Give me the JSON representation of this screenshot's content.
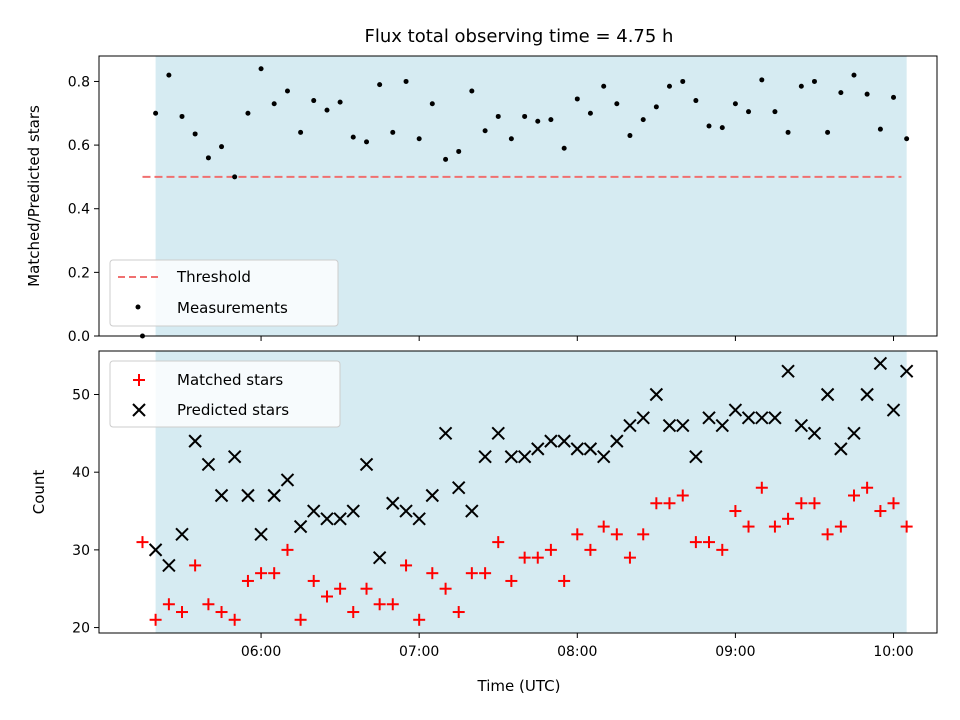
{
  "chart_data": [
    {
      "type": "scatter",
      "title": "Flux total observing time = 4.75 h",
      "xlabel": "",
      "ylabel": "Matched/Predicted stars",
      "xlim_hours": [
        4.975,
        10.275
      ],
      "ylim": [
        0,
        0.88
      ],
      "yticks": [
        0.0,
        0.2,
        0.4,
        0.6,
        0.8
      ],
      "ytick_labels": [
        "0.0",
        "0.2",
        "0.4",
        "0.6",
        "0.8"
      ],
      "xticks_hours": [
        6,
        7,
        8,
        9,
        10
      ],
      "grid": false,
      "legend_position": "lower-left",
      "observing_window_hours": [
        5.333,
        10.083
      ],
      "observing_window_color": "#add8e6",
      "threshold": {
        "name": "Threshold",
        "value": 0.5,
        "x_range_hours": [
          5.25,
          10.05
        ],
        "color": "#f07070"
      },
      "series": [
        {
          "name": "Measurements",
          "marker": "dot",
          "color": "#000000",
          "x_hours": [
            5.25,
            5.333,
            5.417,
            5.5,
            5.583,
            5.667,
            5.75,
            5.833,
            5.917,
            6.0,
            6.083,
            6.167,
            6.25,
            6.333,
            6.417,
            6.5,
            6.583,
            6.667,
            6.75,
            6.833,
            6.917,
            7.0,
            7.083,
            7.167,
            7.25,
            7.333,
            7.417,
            7.5,
            7.583,
            7.667,
            7.75,
            7.833,
            7.917,
            8.0,
            8.083,
            8.167,
            8.25,
            8.333,
            8.417,
            8.5,
            8.583,
            8.667,
            8.75,
            8.833,
            8.917,
            9.0,
            9.083,
            9.167,
            9.25,
            9.333,
            9.417,
            9.5,
            9.583,
            9.667,
            9.75,
            9.833,
            9.917,
            10.0,
            10.083
          ],
          "y": [
            0.0,
            0.7,
            0.82,
            0.69,
            0.635,
            0.56,
            0.595,
            0.5,
            0.7,
            0.84,
            0.73,
            0.77,
            0.64,
            0.74,
            0.71,
            0.735,
            0.625,
            0.61,
            0.79,
            0.64,
            0.8,
            0.62,
            0.73,
            0.555,
            0.58,
            0.77,
            0.645,
            0.69,
            0.62,
            0.69,
            0.675,
            0.68,
            0.59,
            0.745,
            0.7,
            0.785,
            0.73,
            0.63,
            0.68,
            0.72,
            0.785,
            0.8,
            0.74,
            0.66,
            0.655,
            0.73,
            0.705,
            0.805,
            0.705,
            0.64,
            0.785,
            0.8,
            0.64,
            0.765,
            0.82,
            0.76,
            0.65,
            0.75,
            0.62
          ]
        }
      ]
    },
    {
      "type": "scatter",
      "title": "",
      "xlabel": "Time (UTC)",
      "ylabel": "Count",
      "xlim_hours": [
        4.975,
        10.275
      ],
      "ylim": [
        19.3,
        55.6
      ],
      "yticks": [
        20,
        30,
        40,
        50
      ],
      "ytick_labels": [
        "20",
        "30",
        "40",
        "50"
      ],
      "xticks_hours": [
        6,
        7,
        8,
        9,
        10
      ],
      "xtick_labels": [
        "06:00",
        "07:00",
        "08:00",
        "09:00",
        "10:00"
      ],
      "grid": false,
      "legend_position": "top-left",
      "observing_window_hours": [
        5.333,
        10.083
      ],
      "observing_window_color": "#add8e6",
      "series": [
        {
          "name": "Matched stars",
          "marker": "plus",
          "color": "#ff0000",
          "x_hours": [
            5.25,
            5.333,
            5.417,
            5.5,
            5.583,
            5.667,
            5.75,
            5.833,
            5.917,
            6.0,
            6.083,
            6.167,
            6.25,
            6.333,
            6.417,
            6.5,
            6.583,
            6.667,
            6.75,
            6.833,
            6.917,
            7.0,
            7.083,
            7.167,
            7.25,
            7.333,
            7.417,
            7.5,
            7.583,
            7.667,
            7.75,
            7.833,
            7.917,
            8.0,
            8.083,
            8.167,
            8.25,
            8.333,
            8.417,
            8.5,
            8.583,
            8.667,
            8.75,
            8.833,
            8.917,
            9.0,
            9.083,
            9.167,
            9.25,
            9.333,
            9.417,
            9.5,
            9.583,
            9.667,
            9.75,
            9.833,
            9.917,
            10.0,
            10.083
          ],
          "y": [
            31,
            21,
            23,
            22,
            28,
            23,
            22,
            21,
            26,
            27,
            27,
            30,
            21,
            26,
            24,
            25,
            22,
            25,
            23,
            23,
            28,
            21,
            27,
            25,
            22,
            27,
            27,
            31,
            26,
            29,
            29,
            30,
            26,
            32,
            30,
            33,
            32,
            29,
            32,
            36,
            36,
            37,
            31,
            31,
            30,
            35,
            33,
            38,
            33,
            34,
            36,
            36,
            32,
            33,
            37,
            38,
            35,
            36,
            33
          ]
        },
        {
          "name": "Predicted stars",
          "marker": "x",
          "color": "#000000",
          "x_hours": [
            5.333,
            5.417,
            5.5,
            5.583,
            5.667,
            5.75,
            5.833,
            5.917,
            6.0,
            6.083,
            6.167,
            6.25,
            6.333,
            6.417,
            6.5,
            6.583,
            6.667,
            6.75,
            6.833,
            6.917,
            7.0,
            7.083,
            7.167,
            7.25,
            7.333,
            7.417,
            7.5,
            7.583,
            7.667,
            7.75,
            7.833,
            7.917,
            8.0,
            8.083,
            8.167,
            8.25,
            8.333,
            8.417,
            8.5,
            8.583,
            8.667,
            8.75,
            8.833,
            8.917,
            9.0,
            9.083,
            9.167,
            9.25,
            9.333,
            9.417,
            9.5,
            9.583,
            9.667,
            9.75,
            9.833,
            9.917,
            10.0,
            10.083
          ],
          "y": [
            30,
            28,
            32,
            44,
            41,
            37,
            42,
            37,
            32,
            37,
            39,
            33,
            35,
            34,
            34,
            35,
            41,
            29,
            36,
            35,
            34,
            37,
            45,
            38,
            35,
            42,
            45,
            42,
            42,
            43,
            44,
            44,
            43,
            43,
            42,
            44,
            46,
            47,
            50,
            46,
            46,
            42,
            47,
            46,
            48,
            47,
            47,
            47,
            53,
            46,
            45,
            50,
            43,
            45,
            50,
            54,
            48,
            53
          ]
        }
      ]
    }
  ]
}
